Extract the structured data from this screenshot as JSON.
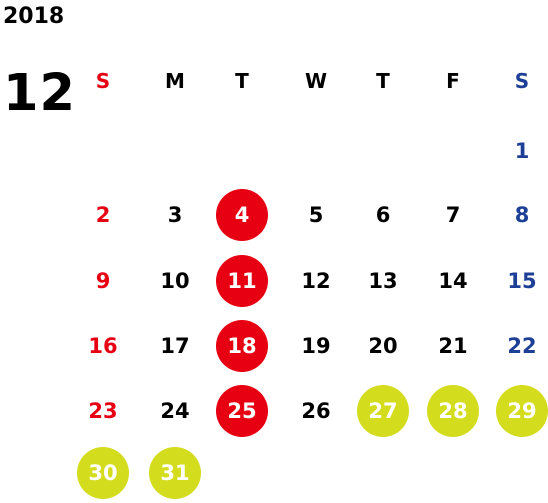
{
  "year": "2018",
  "month": "12",
  "weekdays": [
    "S",
    "M",
    "T",
    "W",
    "T",
    "F",
    "S"
  ],
  "days": [
    {
      "label": "1",
      "style": "sat"
    },
    {
      "label": "2",
      "style": "sun"
    },
    {
      "label": "3",
      "style": "normal"
    },
    {
      "label": "4",
      "style": "red"
    },
    {
      "label": "5",
      "style": "normal"
    },
    {
      "label": "6",
      "style": "normal"
    },
    {
      "label": "7",
      "style": "normal"
    },
    {
      "label": "8",
      "style": "sat"
    },
    {
      "label": "9",
      "style": "sun"
    },
    {
      "label": "10",
      "style": "normal"
    },
    {
      "label": "11",
      "style": "red"
    },
    {
      "label": "12",
      "style": "normal"
    },
    {
      "label": "13",
      "style": "normal"
    },
    {
      "label": "14",
      "style": "normal"
    },
    {
      "label": "15",
      "style": "sat"
    },
    {
      "label": "16",
      "style": "sun"
    },
    {
      "label": "17",
      "style": "normal"
    },
    {
      "label": "18",
      "style": "red"
    },
    {
      "label": "19",
      "style": "normal"
    },
    {
      "label": "20",
      "style": "normal"
    },
    {
      "label": "21",
      "style": "normal"
    },
    {
      "label": "22",
      "style": "sat"
    },
    {
      "label": "23",
      "style": "sun"
    },
    {
      "label": "24",
      "style": "normal"
    },
    {
      "label": "25",
      "style": "red"
    },
    {
      "label": "26",
      "style": "normal"
    },
    {
      "label": "27",
      "style": "yellow"
    },
    {
      "label": "28",
      "style": "yellow"
    },
    {
      "label": "29",
      "style": "yellow"
    },
    {
      "label": "30",
      "style": "yellow"
    },
    {
      "label": "31",
      "style": "yellow"
    }
  ],
  "colors": {
    "sunday": "#e60012",
    "saturday": "#1d3f95",
    "highlight_red": "#e60012",
    "highlight_yellow": "#d4dc1e"
  }
}
